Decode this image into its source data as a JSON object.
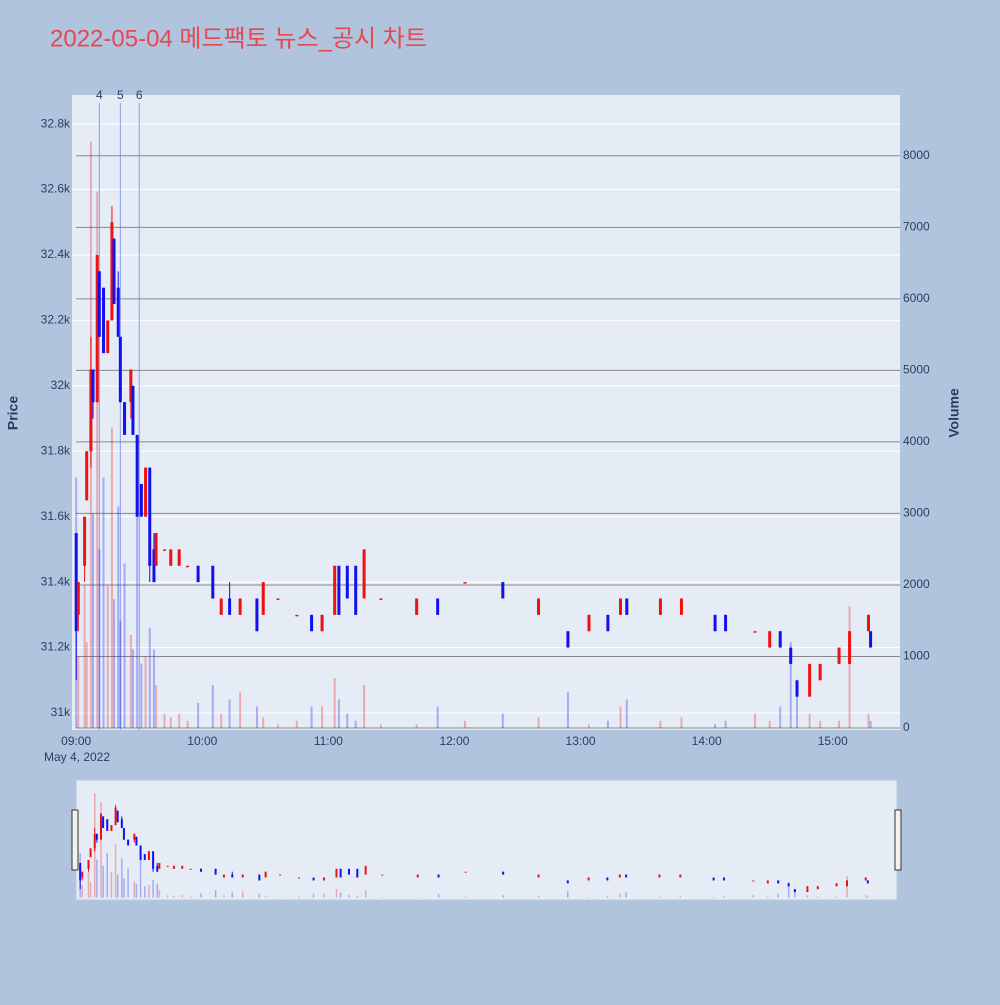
{
  "chart_data": {
    "type": "candlestick",
    "title": "2022-05-04 메드팩토 뉴스_공시 차트",
    "ylabel": "Price",
    "y2label": "Volume",
    "date_label": "May 4, 2022",
    "increasing_color": "#ee1111",
    "decreasing_color": "#1111ee",
    "x": [
      "09:00",
      "09:01",
      "09:04",
      "09:05",
      "09:07",
      "09:08",
      "09:10",
      "09:11",
      "09:13",
      "09:15",
      "09:17",
      "09:18",
      "09:20",
      "09:21",
      "09:23",
      "09:26",
      "09:27",
      "09:29",
      "09:31",
      "09:33",
      "09:35",
      "09:37",
      "09:38",
      "09:42",
      "09:45",
      "09:49",
      "09:53",
      "09:58",
      "10:05",
      "10:09",
      "10:13",
      "10:18",
      "10:26",
      "10:29",
      "10:36",
      "10:45",
      "10:52",
      "10:57",
      "11:03",
      "11:05",
      "11:09",
      "11:13",
      "11:17",
      "11:25",
      "11:42",
      "11:52",
      "12:05",
      "12:23",
      "12:40",
      "12:54",
      "13:04",
      "13:13",
      "13:19",
      "13:22",
      "13:38",
      "13:48",
      "14:04",
      "14:09",
      "14:23",
      "14:30",
      "14:35",
      "14:40",
      "14:43",
      "14:49",
      "14:54",
      "15:03",
      "15:08",
      "15:17",
      "15:18"
    ],
    "open": [
      31550,
      31300,
      31450,
      31650,
      31800,
      32050,
      31950,
      32350,
      32300,
      32100,
      32200,
      32450,
      32300,
      32150,
      31950,
      31950,
      32000,
      31850,
      31700,
      31600,
      31750,
      31500,
      31450,
      31500,
      31450,
      31450,
      31450,
      31450,
      31450,
      31300,
      31350,
      31300,
      31350,
      31300,
      31350,
      31300,
      31300,
      31250,
      31300,
      31450,
      31450,
      31450,
      31350,
      31350,
      31300,
      31350,
      31400,
      31400,
      31300,
      31250,
      31250,
      31300,
      31300,
      31350,
      31300,
      31300,
      31300,
      31300,
      31250,
      31200,
      31250,
      31200,
      31100,
      31050,
      31100,
      31150,
      31150,
      31250,
      31250
    ],
    "high": [
      31550,
      31400,
      31600,
      31800,
      32150,
      32050,
      32400,
      32350,
      32300,
      32200,
      32550,
      32450,
      32350,
      32150,
      31950,
      32050,
      32000,
      31850,
      31700,
      31750,
      31750,
      31550,
      31550,
      31500,
      31500,
      31500,
      31450,
      31450,
      31450,
      31350,
      31400,
      31350,
      31350,
      31400,
      31350,
      31300,
      31300,
      31300,
      31450,
      31450,
      31450,
      31450,
      31500,
      31350,
      31350,
      31350,
      31400,
      31400,
      31350,
      31250,
      31300,
      31300,
      31350,
      31350,
      31350,
      31350,
      31300,
      31300,
      31250,
      31250,
      31250,
      31200,
      31100,
      31150,
      31150,
      31200,
      31250,
      31300,
      31250
    ],
    "low": [
      31100,
      31250,
      31400,
      31650,
      31750,
      31900,
      31950,
      32150,
      32100,
      32100,
      32200,
      32250,
      32150,
      31950,
      31850,
      31900,
      31850,
      31600,
      31600,
      31600,
      31400,
      31400,
      31450,
      31500,
      31450,
      31450,
      31450,
      31400,
      31350,
      31300,
      31300,
      31300,
      31250,
      31300,
      31350,
      31300,
      31250,
      31250,
      31300,
      31300,
      31350,
      31300,
      31350,
      31350,
      31300,
      31300,
      31400,
      31350,
      31300,
      31200,
      31250,
      31250,
      31300,
      31300,
      31300,
      31300,
      31250,
      31250,
      31250,
      31200,
      31200,
      31150,
      31050,
      31050,
      31100,
      31150,
      31150,
      31250,
      31200
    ],
    "close": [
      31250,
      31400,
      31600,
      31800,
      32050,
      31950,
      32400,
      32150,
      32100,
      32200,
      32500,
      32250,
      32150,
      31950,
      31850,
      32050,
      31850,
      31600,
      31600,
      31750,
      31450,
      31400,
      31550,
      31500,
      31500,
      31500,
      31450,
      31400,
      31350,
      31350,
      31300,
      31350,
      31250,
      31400,
      31350,
      31300,
      31250,
      31300,
      31450,
      31300,
      31350,
      31300,
      31500,
      31350,
      31350,
      31300,
      31400,
      31350,
      31350,
      31200,
      31300,
      31250,
      31350,
      31300,
      31350,
      31350,
      31250,
      31250,
      31250,
      31250,
      31200,
      31150,
      31050,
      31150,
      31150,
      31200,
      31250,
      31300,
      31200
    ],
    "volume": [
      3500,
      1000,
      2000,
      1200,
      8200,
      3000,
      7500,
      2500,
      3500,
      2000,
      4200,
      1800,
      3100,
      1500,
      2300,
      1300,
      1100,
      3400,
      900,
      1000,
      1400,
      1100,
      600,
      200,
      150,
      200,
      100,
      350,
      600,
      200,
      400,
      500,
      300,
      150,
      50,
      100,
      300,
      300,
      700,
      400,
      200,
      100,
      600,
      50,
      50,
      300,
      100,
      200,
      150,
      500,
      50,
      100,
      300,
      400,
      100,
      150,
      50,
      100,
      200,
      100,
      300,
      1200,
      500,
      200,
      100,
      100,
      1700,
      200,
      100
    ],
    "xlim": [
      "08:58",
      "15:32"
    ],
    "xticks": [
      "09:00",
      "10:00",
      "11:00",
      "12:00",
      "13:00",
      "14:00",
      "15:00"
    ],
    "ylim": [
      30948,
      32889
    ],
    "yticks": [
      {
        "value": 31000,
        "label": "31k"
      },
      {
        "value": 31200,
        "label": "31.2k"
      },
      {
        "value": 31400,
        "label": "31.4k"
      },
      {
        "value": 31600,
        "label": "31.6k"
      },
      {
        "value": 31800,
        "label": "31.8k"
      },
      {
        "value": 32000,
        "label": "32k"
      },
      {
        "value": 32200,
        "label": "32.2k"
      },
      {
        "value": 32400,
        "label": "32.4k"
      },
      {
        "value": 32600,
        "label": "32.6k"
      },
      {
        "value": 32800,
        "label": "32.8k"
      }
    ],
    "y2lim": [
      -28,
      8850
    ],
    "y2ticks": [
      0,
      1000,
      2000,
      3000,
      4000,
      5000,
      6000,
      7000,
      8000
    ],
    "annotations": [
      {
        "x": "09:11",
        "text": "4"
      },
      {
        "x": "09:21",
        "text": "5"
      },
      {
        "x": "09:30",
        "text": "6"
      }
    ]
  }
}
